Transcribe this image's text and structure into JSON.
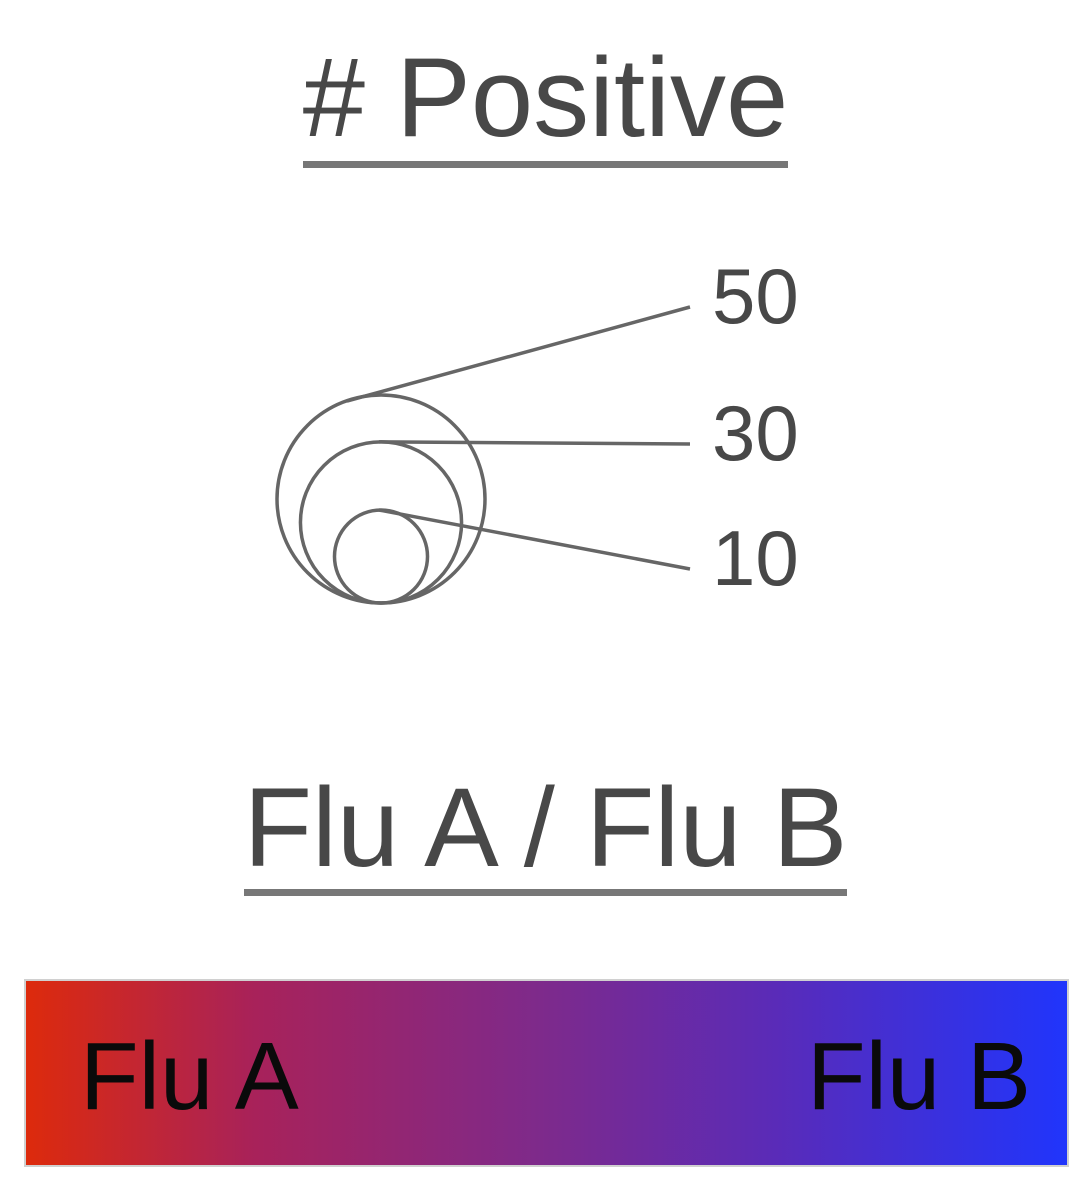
{
  "size_legend": {
    "title": "# Positive",
    "items": [
      {
        "value": 50,
        "label": "50"
      },
      {
        "value": 30,
        "label": "30"
      },
      {
        "value": 10,
        "label": "10"
      }
    ],
    "stroke_color": "#666666"
  },
  "color_legend": {
    "title": "Flu A / Flu B",
    "left_label": "Flu A",
    "right_label": "Flu B",
    "left_color": "#dd2a0c",
    "right_color": "#2035fc"
  }
}
